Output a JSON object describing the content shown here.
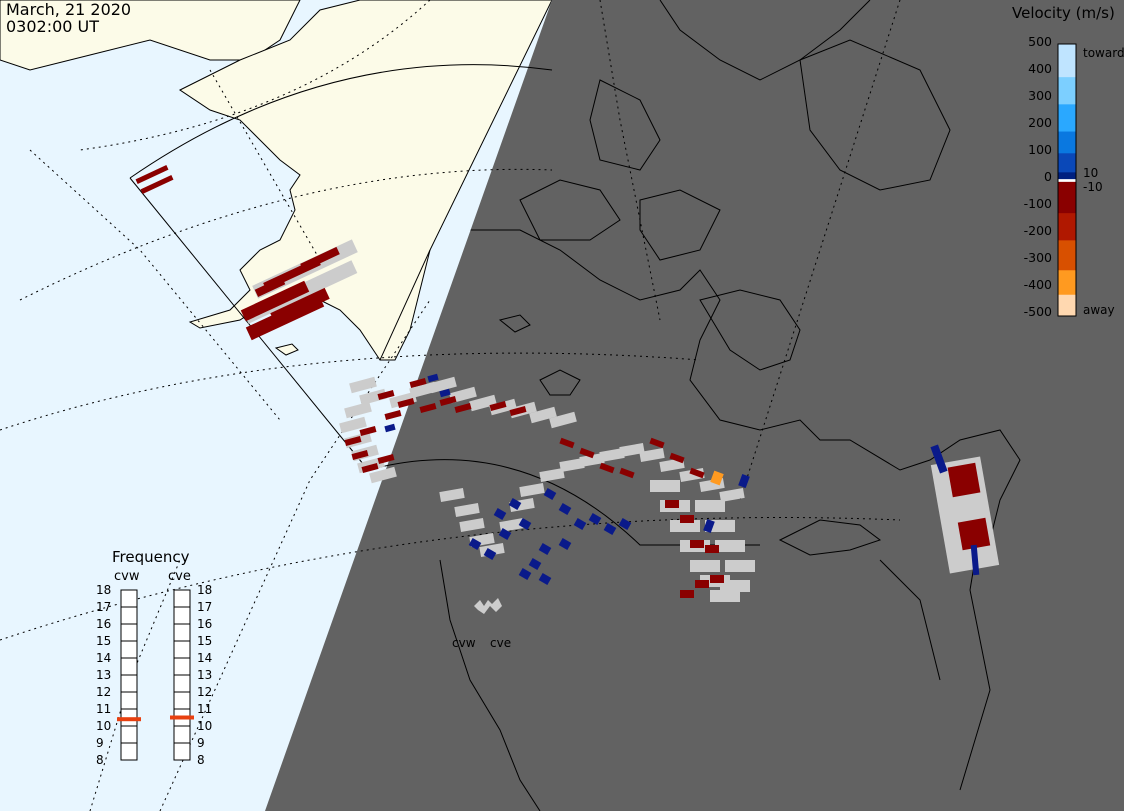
{
  "header": {
    "date": "March, 21 2020",
    "time": "0302:00 UT"
  },
  "colorbar": {
    "title": "Velocity (m/s)",
    "ticks": [
      "500",
      "400",
      "300",
      "200",
      "100",
      "0",
      "-100",
      "-200",
      "-300",
      "-400",
      "-500"
    ],
    "toward_label": "toward",
    "away_label": "away",
    "plus_label": "10",
    "minus_label": "-10",
    "colors": [
      "#bfe4ff",
      "#7ccfff",
      "#2aa8ff",
      "#0a78e0",
      "#0a48b8",
      "#002080",
      "#ffffff",
      "#8a0000",
      "#b01800",
      "#d85000",
      "#ff9a20",
      "#ffd8b0"
    ]
  },
  "frequency": {
    "title": "Frequency",
    "radars": [
      {
        "name": "cvw",
        "current_mhz": 10.4
      },
      {
        "name": "cve",
        "current_mhz": 10.5
      }
    ],
    "scale": [
      "18",
      "17",
      "16",
      "15",
      "14",
      "13",
      "12",
      "11",
      "10",
      "9",
      "8"
    ],
    "marker_color": "#e84010"
  },
  "radars": [
    {
      "name": "cvw"
    },
    {
      "name": "cve"
    }
  ],
  "map": {
    "ocean_color": "#e8f6ff",
    "land_day_color": "#fcfbe8",
    "night_color": "#626262",
    "scatter_ground_color": "#cccccc"
  }
}
